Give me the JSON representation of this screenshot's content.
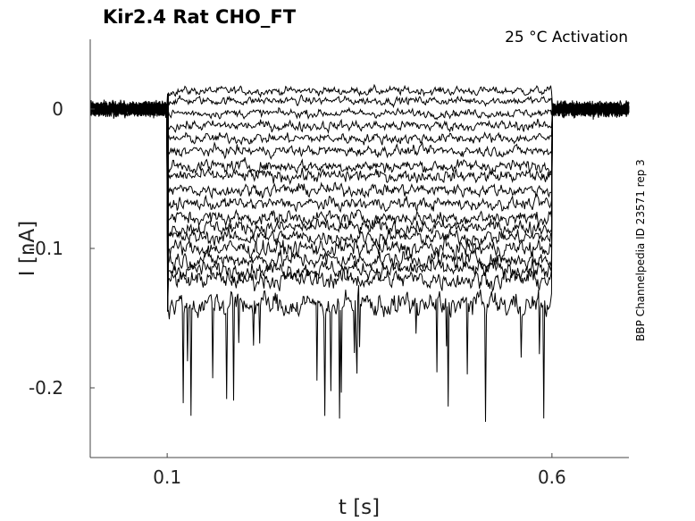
{
  "chart_data": {
    "type": "line",
    "title": "Kir2.4  Rat  CHO_FT",
    "subtitle": "25 °C  Activation",
    "side_label": "BBP Channelpedia ID 23571 rep 3",
    "xlabel": "t [s]",
    "ylabel": "I [nA]",
    "xlim": [
      0.0,
      0.7
    ],
    "ylim": [
      -0.25,
      0.05
    ],
    "xticks": [
      0.1,
      0.6
    ],
    "xtick_labels": [
      "0.1",
      "0.6"
    ],
    "yticks": [
      0,
      -0.1,
      -0.2
    ],
    "ytick_labels": [
      "0",
      "-0.1",
      "-0.2"
    ],
    "grid": false,
    "step_start": 0.1,
    "step_end": 0.6,
    "baseline_noise": 0.006,
    "series": [
      {
        "level": 0.013,
        "noise": 0.004
      },
      {
        "level": 0.006,
        "noise": 0.004
      },
      {
        "level": -0.003,
        "noise": 0.004
      },
      {
        "level": -0.012,
        "noise": 0.005
      },
      {
        "level": -0.021,
        "noise": 0.005
      },
      {
        "level": -0.03,
        "noise": 0.005
      },
      {
        "level": -0.041,
        "noise": 0.006
      },
      {
        "level": -0.048,
        "noise": 0.006
      },
      {
        "level": -0.058,
        "noise": 0.006
      },
      {
        "level": -0.068,
        "noise": 0.006
      },
      {
        "level": -0.078,
        "noise": 0.007
      },
      {
        "level": -0.085,
        "noise": 0.007
      },
      {
        "level": -0.092,
        "noise": 0.007
      },
      {
        "level": -0.1,
        "noise": 0.008
      },
      {
        "level": -0.108,
        "noise": 0.008
      },
      {
        "level": -0.115,
        "noise": 0.008
      },
      {
        "level": -0.122,
        "noise": 0.009
      },
      {
        "level": -0.14,
        "noise": 0.012
      }
    ]
  }
}
